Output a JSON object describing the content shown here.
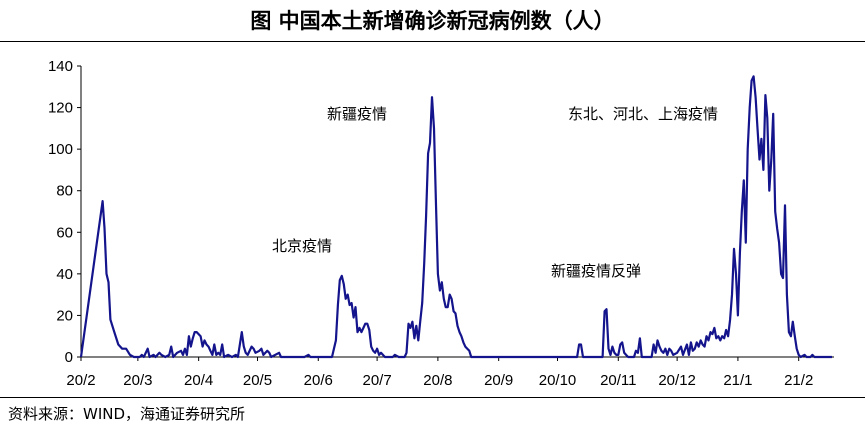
{
  "header": {
    "title": "图  中国本土新增确诊新冠病例数（人）"
  },
  "footer": {
    "source": "资料来源：WIND，海通证券研究所"
  },
  "chart_data": {
    "type": "line",
    "title": "图  中国本土新增确诊新冠病例数（人）",
    "xlabel": "",
    "ylabel": "",
    "ylim": [
      0,
      140
    ],
    "yticks": [
      0,
      20,
      40,
      60,
      80,
      100,
      120,
      140
    ],
    "xticks": [
      "20/2",
      "20/3",
      "20/4",
      "20/5",
      "20/6",
      "20/7",
      "20/8",
      "20/9",
      "20/10",
      "20/11",
      "20/12",
      "21/1",
      "21/2"
    ],
    "grid": false,
    "line_color": "#14148c",
    "annotations": [
      {
        "text": "北京疫情"
      },
      {
        "text": "新疆疫情"
      },
      {
        "text": "新疆疫情反弹"
      },
      {
        "text": "东北、河北、上海疫情"
      }
    ],
    "series": [
      {
        "points": [
          [
            "2020-02-01",
            0
          ],
          [
            "2020-02-12",
            75
          ],
          [
            "2020-02-13",
            62
          ],
          [
            "2020-02-14",
            40
          ],
          [
            "2020-02-15",
            36
          ],
          [
            "2020-02-16",
            18
          ],
          [
            "2020-02-18",
            12
          ],
          [
            "2020-02-20",
            6
          ],
          [
            "2020-02-22",
            4
          ],
          [
            "2020-02-24",
            4
          ],
          [
            "2020-02-26",
            1
          ],
          [
            "2020-02-28",
            0
          ],
          [
            "2020-03-02",
            0
          ],
          [
            "2020-03-03",
            1
          ],
          [
            "2020-03-04",
            0
          ],
          [
            "2020-03-06",
            4
          ],
          [
            "2020-03-07",
            0
          ],
          [
            "2020-03-09",
            1
          ],
          [
            "2020-03-10",
            0
          ],
          [
            "2020-03-12",
            2
          ],
          [
            "2020-03-13",
            1
          ],
          [
            "2020-03-15",
            0
          ],
          [
            "2020-03-17",
            1
          ],
          [
            "2020-03-18",
            5
          ],
          [
            "2020-03-19",
            0
          ],
          [
            "2020-03-21",
            2
          ],
          [
            "2020-03-23",
            3
          ],
          [
            "2020-03-24",
            1
          ],
          [
            "2020-03-25",
            4
          ],
          [
            "2020-03-26",
            1
          ],
          [
            "2020-03-27",
            10
          ],
          [
            "2020-03-28",
            5
          ],
          [
            "2020-03-29",
            9
          ],
          [
            "2020-03-30",
            12
          ],
          [
            "2020-03-31",
            12
          ],
          [
            "2020-04-02",
            10
          ],
          [
            "2020-04-03",
            5
          ],
          [
            "2020-04-04",
            8
          ],
          [
            "2020-04-05",
            6
          ],
          [
            "2020-04-06",
            5
          ],
          [
            "2020-04-07",
            3
          ],
          [
            "2020-04-08",
            1
          ],
          [
            "2020-04-09",
            6
          ],
          [
            "2020-04-10",
            1
          ],
          [
            "2020-04-11",
            2
          ],
          [
            "2020-04-12",
            1
          ],
          [
            "2020-04-13",
            6
          ],
          [
            "2020-04-14",
            0
          ],
          [
            "2020-04-16",
            1
          ],
          [
            "2020-04-18",
            0
          ],
          [
            "2020-04-20",
            1
          ],
          [
            "2020-04-21",
            0
          ],
          [
            "2020-04-23",
            12
          ],
          [
            "2020-04-24",
            5
          ],
          [
            "2020-04-25",
            2
          ],
          [
            "2020-04-26",
            1
          ],
          [
            "2020-04-28",
            5
          ],
          [
            "2020-04-29",
            4
          ],
          [
            "2020-04-30",
            2
          ],
          [
            "2020-05-02",
            3
          ],
          [
            "2020-05-03",
            4
          ],
          [
            "2020-05-04",
            1
          ],
          [
            "2020-05-06",
            3
          ],
          [
            "2020-05-07",
            2
          ],
          [
            "2020-05-08",
            0
          ],
          [
            "2020-05-12",
            2
          ],
          [
            "2020-05-13",
            0
          ],
          [
            "2020-05-16",
            0
          ],
          [
            "2020-05-25",
            0
          ],
          [
            "2020-05-27",
            1
          ],
          [
            "2020-05-28",
            0
          ],
          [
            "2020-06-08",
            0
          ],
          [
            "2020-06-10",
            8
          ],
          [
            "2020-06-11",
            25
          ],
          [
            "2020-06-12",
            37
          ],
          [
            "2020-06-13",
            39
          ],
          [
            "2020-06-14",
            35
          ],
          [
            "2020-06-15",
            28
          ],
          [
            "2020-06-16",
            30
          ],
          [
            "2020-06-17",
            25
          ],
          [
            "2020-06-18",
            26
          ],
          [
            "2020-06-19",
            19
          ],
          [
            "2020-06-20",
            24
          ],
          [
            "2020-06-21",
            12
          ],
          [
            "2020-06-22",
            14
          ],
          [
            "2020-06-23",
            12
          ],
          [
            "2020-06-24",
            14
          ],
          [
            "2020-06-25",
            16
          ],
          [
            "2020-06-26",
            16
          ],
          [
            "2020-06-27",
            13
          ],
          [
            "2020-06-28",
            5
          ],
          [
            "2020-06-29",
            3
          ],
          [
            "2020-06-30",
            2
          ],
          [
            "2020-07-01",
            4
          ],
          [
            "2020-07-02",
            1
          ],
          [
            "2020-07-03",
            2
          ],
          [
            "2020-07-05",
            0
          ],
          [
            "2020-07-09",
            0
          ],
          [
            "2020-07-10",
            1
          ],
          [
            "2020-07-12",
            0
          ],
          [
            "2020-07-15",
            0
          ],
          [
            "2020-07-16",
            2
          ],
          [
            "2020-07-17",
            16
          ],
          [
            "2020-07-18",
            14
          ],
          [
            "2020-07-19",
            17
          ],
          [
            "2020-07-20",
            9
          ],
          [
            "2020-07-21",
            15
          ],
          [
            "2020-07-22",
            8
          ],
          [
            "2020-07-23",
            17
          ],
          [
            "2020-07-24",
            26
          ],
          [
            "2020-07-25",
            45
          ],
          [
            "2020-07-26",
            68
          ],
          [
            "2020-07-27",
            98
          ],
          [
            "2020-07-28",
            103
          ],
          [
            "2020-07-29",
            125
          ],
          [
            "2020-07-30",
            110
          ],
          [
            "2020-07-31",
            75
          ],
          [
            "2020-08-01",
            40
          ],
          [
            "2020-08-02",
            32
          ],
          [
            "2020-08-03",
            36
          ],
          [
            "2020-08-04",
            28
          ],
          [
            "2020-08-05",
            24
          ],
          [
            "2020-08-06",
            24
          ],
          [
            "2020-08-07",
            30
          ],
          [
            "2020-08-08",
            28
          ],
          [
            "2020-08-09",
            22
          ],
          [
            "2020-08-10",
            21
          ],
          [
            "2020-08-11",
            15
          ],
          [
            "2020-08-12",
            12
          ],
          [
            "2020-08-13",
            10
          ],
          [
            "2020-08-14",
            7
          ],
          [
            "2020-08-15",
            5
          ],
          [
            "2020-08-16",
            4
          ],
          [
            "2020-08-17",
            3
          ],
          [
            "2020-08-18",
            0
          ],
          [
            "2020-09-30",
            0
          ],
          [
            "2020-10-11",
            0
          ],
          [
            "2020-10-12",
            6
          ],
          [
            "2020-10-13",
            6
          ],
          [
            "2020-10-14",
            0
          ],
          [
            "2020-10-24",
            0
          ],
          [
            "2020-10-25",
            22
          ],
          [
            "2020-10-26",
            23
          ],
          [
            "2020-10-27",
            4
          ],
          [
            "2020-10-28",
            1
          ],
          [
            "2020-10-29",
            5
          ],
          [
            "2020-10-30",
            2
          ],
          [
            "2020-10-31",
            1
          ],
          [
            "2020-11-01",
            1
          ],
          [
            "2020-11-02",
            6
          ],
          [
            "2020-11-03",
            7
          ],
          [
            "2020-11-04",
            2
          ],
          [
            "2020-11-05",
            1
          ],
          [
            "2020-11-06",
            0
          ],
          [
            "2020-11-09",
            0
          ],
          [
            "2020-11-10",
            3
          ],
          [
            "2020-11-11",
            2
          ],
          [
            "2020-11-12",
            9
          ],
          [
            "2020-11-13",
            0
          ],
          [
            "2020-11-18",
            0
          ],
          [
            "2020-11-19",
            6
          ],
          [
            "2020-11-20",
            2
          ],
          [
            "2020-11-21",
            8
          ],
          [
            "2020-11-22",
            5
          ],
          [
            "2020-11-23",
            3
          ],
          [
            "2020-11-24",
            2
          ],
          [
            "2020-11-25",
            4
          ],
          [
            "2020-11-26",
            1
          ],
          [
            "2020-11-27",
            4
          ],
          [
            "2020-11-28",
            3
          ],
          [
            "2020-11-29",
            1
          ],
          [
            "2020-12-01",
            2
          ],
          [
            "2020-12-03",
            5
          ],
          [
            "2020-12-04",
            1
          ],
          [
            "2020-12-06",
            6
          ],
          [
            "2020-12-07",
            1
          ],
          [
            "2020-12-08",
            7
          ],
          [
            "2020-12-09",
            3
          ],
          [
            "2020-12-10",
            4
          ],
          [
            "2020-12-11",
            7
          ],
          [
            "2020-12-12",
            5
          ],
          [
            "2020-12-13",
            8
          ],
          [
            "2020-12-14",
            6
          ],
          [
            "2020-12-15",
            5
          ],
          [
            "2020-12-16",
            10
          ],
          [
            "2020-12-17",
            8
          ],
          [
            "2020-12-18",
            12
          ],
          [
            "2020-12-19",
            11
          ],
          [
            "2020-12-20",
            14
          ],
          [
            "2020-12-21",
            9
          ],
          [
            "2020-12-22",
            10
          ],
          [
            "2020-12-23",
            8
          ],
          [
            "2020-12-24",
            10
          ],
          [
            "2020-12-25",
            9
          ],
          [
            "2020-12-26",
            13
          ],
          [
            "2020-12-27",
            10
          ],
          [
            "2020-12-28",
            18
          ],
          [
            "2020-12-29",
            30
          ],
          [
            "2020-12-30",
            52
          ],
          [
            "2020-12-31",
            40
          ],
          [
            "2021-01-01",
            20
          ],
          [
            "2021-01-02",
            50
          ],
          [
            "2021-01-03",
            70
          ],
          [
            "2021-01-04",
            85
          ],
          [
            "2021-01-05",
            55
          ],
          [
            "2021-01-06",
            100
          ],
          [
            "2021-01-07",
            120
          ],
          [
            "2021-01-08",
            133
          ],
          [
            "2021-01-09",
            135
          ],
          [
            "2021-01-10",
            125
          ],
          [
            "2021-01-11",
            110
          ],
          [
            "2021-01-12",
            95
          ],
          [
            "2021-01-13",
            105
          ],
          [
            "2021-01-14",
            90
          ],
          [
            "2021-01-15",
            126
          ],
          [
            "2021-01-16",
            115
          ],
          [
            "2021-01-17",
            80
          ],
          [
            "2021-01-18",
            95
          ],
          [
            "2021-01-19",
            117
          ],
          [
            "2021-01-20",
            70
          ],
          [
            "2021-01-21",
            62
          ],
          [
            "2021-01-22",
            55
          ],
          [
            "2021-01-23",
            40
          ],
          [
            "2021-01-24",
            38
          ],
          [
            "2021-01-25",
            73
          ],
          [
            "2021-01-26",
            30
          ],
          [
            "2021-01-27",
            12
          ],
          [
            "2021-01-28",
            10
          ],
          [
            "2021-01-29",
            17
          ],
          [
            "2021-01-30",
            10
          ],
          [
            "2021-01-31",
            4
          ],
          [
            "2021-02-01",
            1
          ],
          [
            "2021-02-02",
            0
          ],
          [
            "2021-02-04",
            1
          ],
          [
            "2021-02-05",
            0
          ],
          [
            "2021-02-07",
            0
          ],
          [
            "2021-02-08",
            1
          ],
          [
            "2021-02-09",
            0
          ],
          [
            "2021-02-18",
            0
          ]
        ]
      }
    ]
  }
}
